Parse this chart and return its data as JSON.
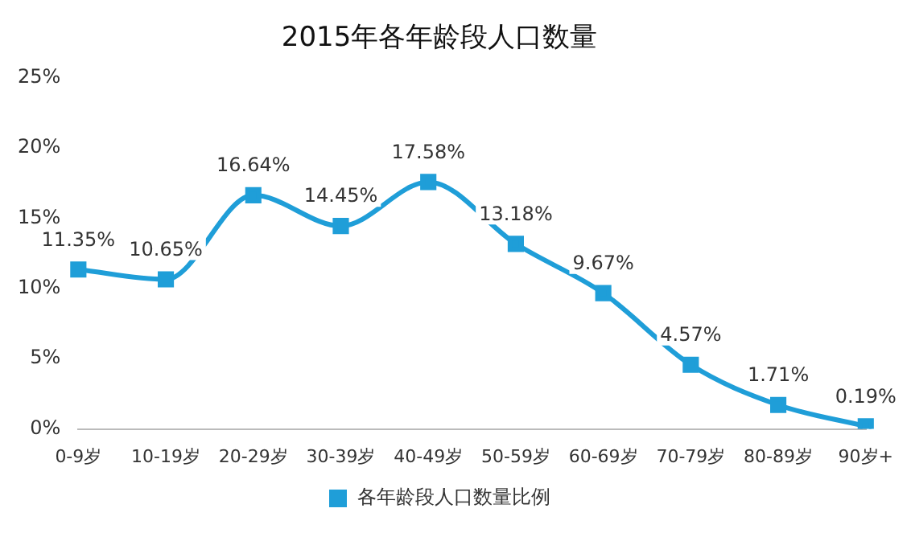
{
  "chart_data": {
    "type": "line",
    "title": "2015年各年龄段人口数量",
    "categories": [
      "0-9岁",
      "10-19岁",
      "20-29岁",
      "30-39岁",
      "40-49岁",
      "50-59岁",
      "60-69岁",
      "70-79岁",
      "80-89岁",
      "90岁+"
    ],
    "series": [
      {
        "name": "各年龄段人口数量比例",
        "color": "#1f9ed8",
        "values": [
          11.35,
          10.65,
          16.64,
          14.45,
          17.58,
          13.18,
          9.67,
          4.57,
          1.71,
          0.19
        ],
        "value_labels": [
          "11.35%",
          "10.65%",
          "16.64%",
          "14.45%",
          "17.58%",
          "13.18%",
          "9.67%",
          "4.57%",
          "1.71%",
          "0.19%"
        ]
      }
    ],
    "ylim": [
      0,
      25
    ],
    "yticks": [
      {
        "value": 0,
        "label": "0%"
      },
      {
        "value": 5,
        "label": "5%"
      },
      {
        "value": 10,
        "label": "10%"
      },
      {
        "value": 15,
        "label": "15%"
      },
      {
        "value": 20,
        "label": "20%"
      },
      {
        "value": 25,
        "label": "25%"
      }
    ],
    "grid": false,
    "legend": "bottom",
    "marker": "square",
    "line_style": "solid"
  }
}
